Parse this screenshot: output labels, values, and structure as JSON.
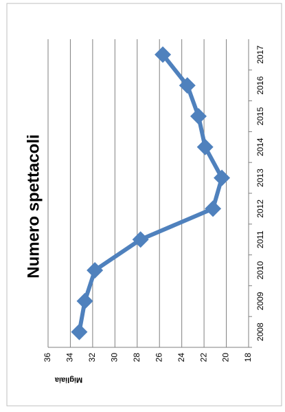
{
  "chart_data": {
    "type": "line",
    "title": "Numero spettacoli",
    "y_label": "Migliaia",
    "categories": [
      "2008",
      "2009",
      "2010",
      "2011",
      "2012",
      "2013",
      "2014",
      "2015",
      "2016",
      "2017"
    ],
    "series": [
      {
        "name": "Numero spettacoli",
        "color": "#4f81bd",
        "values": [
          33.2,
          32.7,
          31.8,
          27.7,
          21.2,
          20.4,
          21.9,
          22.5,
          23.5,
          25.7
        ]
      }
    ],
    "ylim": [
      18,
      36
    ],
    "yticks": [
      18,
      20,
      22,
      24,
      26,
      28,
      30,
      32,
      34,
      36
    ],
    "grid": true
  }
}
